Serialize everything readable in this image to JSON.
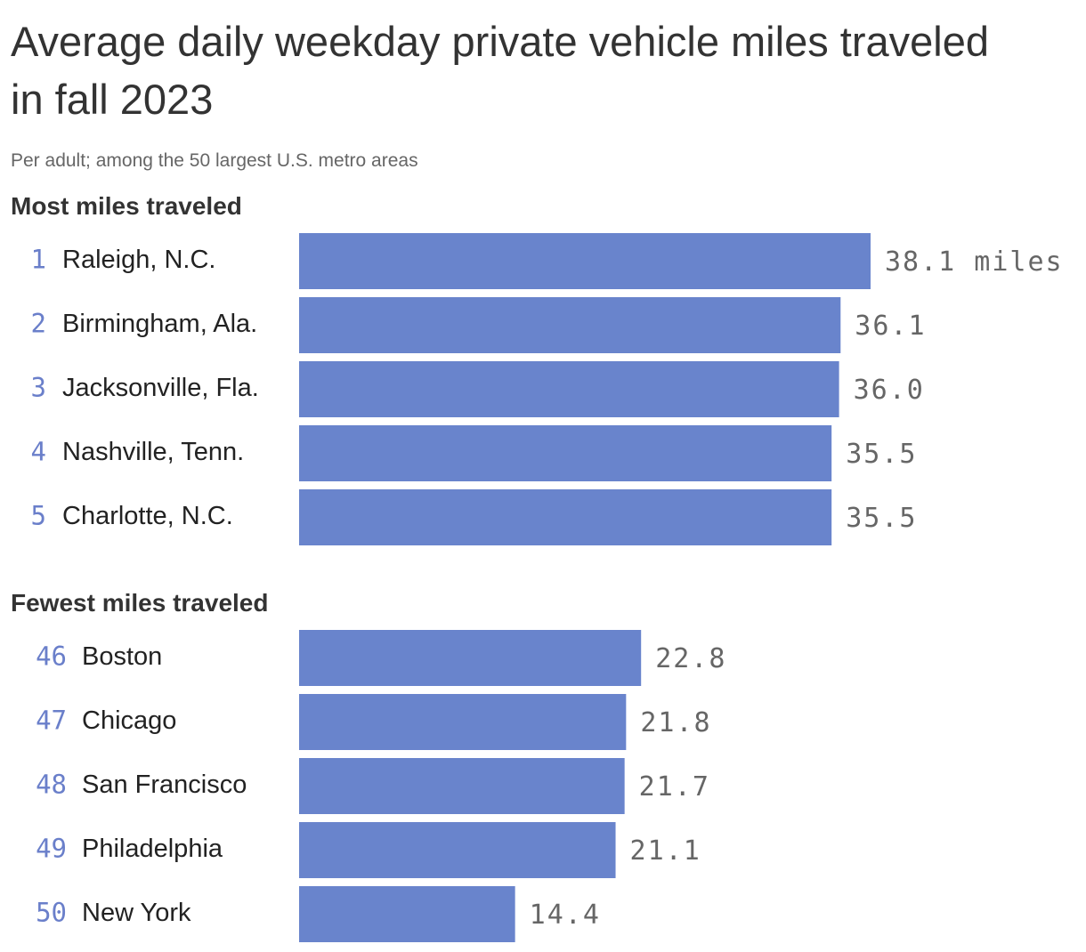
{
  "chart_data": {
    "type": "bar",
    "title": "Average daily weekday private vehicle miles traveled in fall 2023",
    "subtitle": "Per adult; among the 50 largest U.S. metro areas",
    "unit": "miles",
    "xlim": [
      0,
      38.1
    ],
    "grid": false,
    "colors": {
      "bar": "#6984cc",
      "rank": "#6a7fca",
      "value": "#666666"
    },
    "groups": [
      {
        "heading": "Most miles traveled",
        "rows": [
          {
            "rank": "1",
            "label": "Raleigh, N.C.",
            "value": 38.1,
            "display": "38.1 miles"
          },
          {
            "rank": "2",
            "label": "Birmingham, Ala.",
            "value": 36.1,
            "display": "36.1"
          },
          {
            "rank": "3",
            "label": "Jacksonville, Fla.",
            "value": 36.0,
            "display": "36.0"
          },
          {
            "rank": "4",
            "label": "Nashville, Tenn.",
            "value": 35.5,
            "display": "35.5"
          },
          {
            "rank": "5",
            "label": "Charlotte, N.C.",
            "value": 35.5,
            "display": "35.5"
          }
        ]
      },
      {
        "heading": "Fewest miles traveled",
        "rows": [
          {
            "rank": "46",
            "label": "Boston",
            "value": 22.8,
            "display": "22.8"
          },
          {
            "rank": "47",
            "label": "Chicago",
            "value": 21.8,
            "display": "21.8"
          },
          {
            "rank": "48",
            "label": "San Francisco",
            "value": 21.7,
            "display": "21.7"
          },
          {
            "rank": "49",
            "label": "Philadelphia",
            "value": 21.1,
            "display": "21.1"
          },
          {
            "rank": "50",
            "label": "New York",
            "value": 14.4,
            "display": "14.4"
          }
        ]
      }
    ]
  }
}
